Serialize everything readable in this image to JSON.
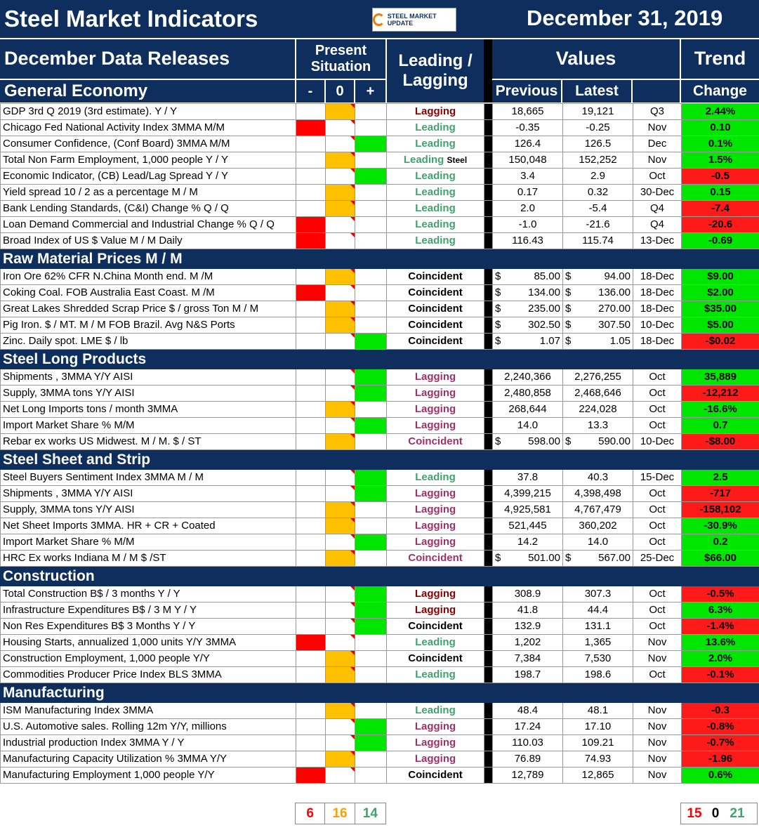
{
  "header": {
    "title": "Steel Market Indicators",
    "logo_text": "STEEL MARKET UPDATE",
    "date": "December 31, 2019",
    "subtitle": "December Data Releases",
    "present_situation": "Present Situation",
    "leading_lagging": "Leading / Lagging",
    "values": "Values",
    "trend": "Trend",
    "col_minus": "-",
    "col_zero": "0",
    "col_plus": "+",
    "col_previous": "Previous",
    "col_latest": "Latest",
    "col_change": "Change"
  },
  "colors": {
    "navy": "#0e2f5e",
    "red": "#ff0000",
    "amber": "#ffc000",
    "green": "#00e600",
    "leading": "#3fa36b",
    "lagging": "#a0306a"
  },
  "sections": [
    {
      "title": "General Economy",
      "rows": [
        {
          "name": "GDP 3rd Q 2019 (3rd estimate). Y / Y",
          "situation": "0",
          "lead": "Lagging",
          "lead_style": "dark",
          "prev": "18,665",
          "latest": "19,121",
          "period": "Q3",
          "change": "2.44%",
          "dir": "up"
        },
        {
          "name": "Chicago Fed National Activity Index 3MMA M/M",
          "situation": "-",
          "lead": "Leading",
          "prev": "-0.35",
          "latest": "-0.25",
          "period": "Nov",
          "change": "0.10",
          "dir": "up"
        },
        {
          "name": "Consumer Confidence, (Conf Board) 3MMA M/M",
          "situation": "+",
          "lead": "Leading",
          "prev": "126.4",
          "latest": "126.5",
          "period": "Dec",
          "change": "0.1%",
          "dir": "up"
        },
        {
          "name": "Total Non Farm Employment, 1,000 people Y / Y",
          "situation": "0",
          "lead": "Leading",
          "lead_suffix": "Steel",
          "prev": "150,048",
          "latest": "152,252",
          "period": "Nov",
          "change": "1.5%",
          "dir": "up"
        },
        {
          "name": "Economic Indicator, (CB) Lead/Lag Spread Y / Y",
          "situation": "+",
          "lead": "Leading",
          "prev": "3.4",
          "latest": "2.9",
          "period": "Oct",
          "change": "-0.5",
          "dir": "down"
        },
        {
          "name": "Yield spread 10 / 2 as a percentage M / M",
          "situation": "0",
          "lead": "Leading",
          "prev": "0.17",
          "latest": "0.32",
          "period": "30-Dec",
          "change": "0.15",
          "dir": "up"
        },
        {
          "name": "Bank Lending Standards, (C&I) Change % Q / Q",
          "situation": "0",
          "lead": "Leading",
          "prev": "2.0",
          "latest": "-5.4",
          "period": "Q4",
          "change": "-7.4",
          "dir": "down"
        },
        {
          "name": "Loan Demand Commercial and Industrial Change % Q / Q",
          "situation": "-",
          "lead": "Leading",
          "prev": "-1.0",
          "latest": "-21.6",
          "period": "Q4",
          "change": "-20.6",
          "dir": "down"
        },
        {
          "name": "Broad Index of US $ Value M / M Daily",
          "situation": "-",
          "lead": "Leading",
          "prev": "116.43",
          "latest": "115.74",
          "period": "13-Dec",
          "change": "-0.69",
          "dir": "up"
        }
      ]
    },
    {
      "title": "Raw Material Prices M / M",
      "rows": [
        {
          "name": "Iron Ore 62% CFR N.China Month end. M /M",
          "situation": "0",
          "lead": "Coincident",
          "money": true,
          "prev": "85.00",
          "latest": "94.00",
          "period": "18-Dec",
          "change": "$9.00",
          "dir": "up"
        },
        {
          "name": "Coking Coal. FOB Australia East Coast. M /M",
          "situation": "-",
          "lead": "Coincident",
          "money": true,
          "prev": "134.00",
          "latest": "136.00",
          "period": "18-Dec",
          "change": "$2.00",
          "dir": "up"
        },
        {
          "name": "Great Lakes Shredded Scrap Price $ / gross Ton M / M",
          "situation": "0",
          "lead": "Coincident",
          "money": true,
          "prev": "235.00",
          "latest": "270.00",
          "period": "18-Dec",
          "change": "$35.00",
          "dir": "up"
        },
        {
          "name": "Pig Iron. $ / MT. M / M FOB Brazil. Avg N&S Ports",
          "situation": "0",
          "lead": "Coincident",
          "money": true,
          "prev": "302.50",
          "latest": "307.50",
          "period": "10-Dec",
          "change": "$5.00",
          "dir": "up"
        },
        {
          "name": "Zinc. Daily spot. LME $ / lb",
          "situation": "+",
          "lead": "Coincident",
          "money": true,
          "prev": "1.07",
          "latest": "1.05",
          "period": "18-Dec",
          "change": "-$0.02",
          "dir": "down"
        }
      ]
    },
    {
      "title": "Steel Long Products",
      "rows": [
        {
          "name": "Shipments , 3MMA Y/Y AISI",
          "situation": "+",
          "lead": "Lagging",
          "prev": "2,240,366",
          "latest": "2,276,255",
          "period": "Oct",
          "change": "35,889",
          "dir": "up"
        },
        {
          "name": "Supply, 3MMA tons Y/Y AISI",
          "situation": "+",
          "lead": "Lagging",
          "prev": "2,480,858",
          "latest": "2,468,646",
          "period": "Oct",
          "change": "-12,212",
          "dir": "down"
        },
        {
          "name": "Net Long Imports tons / month 3MMA",
          "situation": "0",
          "lead": "Lagging",
          "prev": "268,644",
          "latest": "224,028",
          "period": "Oct",
          "change": "-16.6%",
          "dir": "up"
        },
        {
          "name": "Import Market Share %  M/M",
          "situation": "+",
          "lead": "Lagging",
          "prev": "14.0",
          "latest": "13.3",
          "period": "Oct",
          "change": "0.7",
          "dir": "up"
        },
        {
          "name": "Rebar ex works US  Midwest. M / M. $ / ST",
          "situation": "0",
          "lead": "Coincident",
          "lead_style": "maroon",
          "money": true,
          "prev": "598.00",
          "latest": "590.00",
          "period": "10-Dec",
          "change": "-$8.00",
          "dir": "down"
        }
      ]
    },
    {
      "title": "Steel Sheet and Strip",
      "rows": [
        {
          "name": "Steel Buyers Sentiment Index 3MMA M / M",
          "situation": "+",
          "lead": "Leading",
          "prev": "37.8",
          "latest": "40.3",
          "period": "15-Dec",
          "change": "2.5",
          "dir": "up"
        },
        {
          "name": "Shipments , 3MMA Y/Y AISI",
          "situation": "+",
          "lead": "Lagging",
          "prev": "4,399,215",
          "latest": "4,398,498",
          "period": "Oct",
          "change": "-717",
          "dir": "down"
        },
        {
          "name": "Supply, 3MMA tons Y/Y AISI",
          "situation": "0",
          "lead": "Lagging",
          "prev": "4,925,581",
          "latest": "4,767,479",
          "period": "Oct",
          "change": "-158,102",
          "dir": "down"
        },
        {
          "name": "Net Sheet Imports  3MMA. HR + CR + Coated",
          "situation": "0",
          "lead": "Lagging",
          "prev": "521,445",
          "latest": "360,202",
          "period": "Oct",
          "change": "-30.9%",
          "dir": "up"
        },
        {
          "name": "Import Market Share % M/M",
          "situation": "+",
          "lead": "Lagging",
          "prev": "14.2",
          "latest": "14.0",
          "period": "Oct",
          "change": "0.2",
          "dir": "up"
        },
        {
          "name": "HRC Ex works Indiana M / M $ /ST",
          "situation": "0",
          "lead": "Coincident",
          "lead_style": "maroon",
          "money": true,
          "prev": "501.00",
          "latest": "567.00",
          "period": "25-Dec",
          "change": "$66.00",
          "dir": "up"
        }
      ]
    },
    {
      "title": "Construction",
      "rows": [
        {
          "name": "Total Construction B$ /  3 months Y / Y",
          "situation": "+",
          "lead": "Lagging",
          "lead_style": "dark",
          "prev": "308.9",
          "latest": "307.3",
          "period": "Oct",
          "change": "-0.5%",
          "dir": "down"
        },
        {
          "name": "Infrastructure Expenditures B$ / 3 M    Y / Y",
          "situation": "+",
          "lead": "Lagging",
          "lead_style": "dark",
          "prev": "41.8",
          "latest": "44.4",
          "period": "Oct",
          "change": "6.3%",
          "dir": "up"
        },
        {
          "name": "Non Res Expenditures B$  3 Months   Y / Y",
          "situation": "+",
          "lead": "Coincident",
          "prev": "132.9",
          "latest": "131.1",
          "period": "Oct",
          "change": "-1.4%",
          "dir": "down"
        },
        {
          "name": "Housing Starts, annualized 1,000 units Y/Y 3MMA",
          "situation": "-",
          "lead": "Leading",
          "prev": "1,202",
          "latest": "1,365",
          "period": "Nov",
          "change": "13.6%",
          "dir": "up"
        },
        {
          "name": "Construction Employment, 1,000 people Y/Y",
          "situation": "0",
          "lead": "Coincident",
          "prev": "7,384",
          "latest": "7,530",
          "period": "Nov",
          "change": "2.0%",
          "dir": "up"
        },
        {
          "name": "Commodities Producer Price Index BLS 3MMA",
          "situation": "0",
          "lead": "Leading",
          "prev": "198.7",
          "latest": "198.6",
          "period": "Oct",
          "change": "-0.1%",
          "dir": "down"
        }
      ]
    },
    {
      "title": "Manufacturing",
      "rows": [
        {
          "name": "ISM Manufacturing Index 3MMA",
          "situation": "0",
          "lead": "Leading",
          "prev": "48.4",
          "latest": "48.1",
          "period": "Nov",
          "change": "-0.3",
          "dir": "down"
        },
        {
          "name": "U.S. Automotive sales. Rolling 12m Y/Y, millions",
          "situation": "+",
          "lead": "Lagging",
          "prev": "17.24",
          "latest": "17.10",
          "period": "Nov",
          "change": "-0.8%",
          "dir": "down"
        },
        {
          "name": "Industrial production Index 3MMA Y / Y",
          "situation": "+",
          "lead": "Lagging",
          "prev": "110.03",
          "latest": "109.21",
          "period": "Nov",
          "change": "-0.7%",
          "dir": "down"
        },
        {
          "name": "Manufacturing Capacity Utilization % 3MMA Y/Y",
          "situation": "0",
          "lead": "Lagging",
          "prev": "76.89",
          "latest": "74.93",
          "period": "Nov",
          "change": "-1.96",
          "dir": "down"
        },
        {
          "name": "Manufacturing Employment 1,000 people Y/Y",
          "situation": "-",
          "lead": "Coincident",
          "prev": "12,789",
          "latest": "12,865",
          "period": "Nov",
          "change": "0.6%",
          "dir": "up"
        }
      ]
    }
  ],
  "totals": {
    "situation": {
      "neg": "6",
      "zero": "16",
      "pos": "14"
    },
    "trend": {
      "down": "15",
      "flat": "0",
      "up": "21"
    }
  }
}
